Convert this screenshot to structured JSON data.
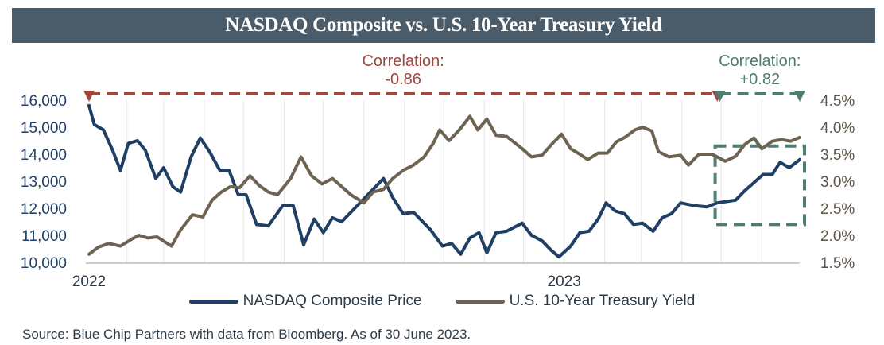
{
  "chart_data": {
    "type": "line",
    "title": "NASDAQ Composite vs. U.S. 10-Year Treasury Yield",
    "source": "Source: Blue Chip Partners with data from Bloomberg. As of 30 June 2023.",
    "x_tick_labels": [
      "2022",
      "2023"
    ],
    "x_range": [
      "2022-01-03",
      "2023-06-30"
    ],
    "y_left": {
      "ylim": [
        10000,
        16000
      ],
      "ticks": [
        "10,000",
        "11,000",
        "12,000",
        "13,000",
        "14,000",
        "15,000",
        "16,000"
      ]
    },
    "y_right": {
      "ylim": [
        1.5,
        4.5
      ],
      "ticks": [
        "1.5%",
        "2.0%",
        "2.5%",
        "3.0%",
        "3.5%",
        "4.0%",
        "4.5%"
      ]
    },
    "legend_position": "bottom",
    "series": [
      {
        "name": "NASDAQ Composite Price",
        "axis": "left",
        "color": "#1f3f66",
        "points": [
          [
            "2022-01-03",
            15800
          ],
          [
            "2022-01-07",
            15100
          ],
          [
            "2022-01-14",
            14900
          ],
          [
            "2022-01-21",
            14150
          ],
          [
            "2022-01-27",
            13400
          ],
          [
            "2022-02-02",
            14400
          ],
          [
            "2022-02-09",
            14500
          ],
          [
            "2022-02-15",
            14150
          ],
          [
            "2022-02-23",
            13100
          ],
          [
            "2022-03-01",
            13500
          ],
          [
            "2022-03-08",
            12800
          ],
          [
            "2022-03-14",
            12600
          ],
          [
            "2022-03-22",
            13900
          ],
          [
            "2022-03-29",
            14600
          ],
          [
            "2022-04-05",
            14100
          ],
          [
            "2022-04-13",
            13400
          ],
          [
            "2022-04-20",
            13400
          ],
          [
            "2022-04-27",
            12500
          ],
          [
            "2022-05-03",
            12500
          ],
          [
            "2022-05-11",
            11400
          ],
          [
            "2022-05-20",
            11350
          ],
          [
            "2022-05-31",
            12100
          ],
          [
            "2022-06-08",
            12100
          ],
          [
            "2022-06-16",
            10650
          ],
          [
            "2022-06-24",
            11600
          ],
          [
            "2022-07-01",
            11100
          ],
          [
            "2022-07-08",
            11650
          ],
          [
            "2022-07-15",
            11500
          ],
          [
            "2022-07-22",
            11850
          ],
          [
            "2022-08-01",
            12350
          ],
          [
            "2022-08-08",
            12700
          ],
          [
            "2022-08-16",
            13100
          ],
          [
            "2022-08-23",
            12400
          ],
          [
            "2022-08-31",
            11800
          ],
          [
            "2022-09-08",
            11850
          ],
          [
            "2022-09-13",
            11600
          ],
          [
            "2022-09-21",
            11200
          ],
          [
            "2022-09-30",
            10600
          ],
          [
            "2022-10-07",
            10700
          ],
          [
            "2022-10-14",
            10300
          ],
          [
            "2022-10-21",
            10900
          ],
          [
            "2022-10-28",
            11100
          ],
          [
            "2022-11-03",
            10350
          ],
          [
            "2022-11-10",
            11100
          ],
          [
            "2022-11-18",
            11150
          ],
          [
            "2022-11-30",
            11450
          ],
          [
            "2022-12-07",
            11000
          ],
          [
            "2022-12-15",
            10800
          ],
          [
            "2022-12-22",
            10450
          ],
          [
            "2022-12-28",
            10200
          ],
          [
            "2023-01-06",
            10600
          ],
          [
            "2023-01-13",
            11100
          ],
          [
            "2023-01-20",
            11150
          ],
          [
            "2023-01-27",
            11600
          ],
          [
            "2023-02-02",
            12200
          ],
          [
            "2023-02-09",
            11900
          ],
          [
            "2023-02-16",
            11800
          ],
          [
            "2023-02-23",
            11400
          ],
          [
            "2023-03-02",
            11450
          ],
          [
            "2023-03-10",
            11150
          ],
          [
            "2023-03-17",
            11650
          ],
          [
            "2023-03-24",
            11800
          ],
          [
            "2023-03-31",
            12200
          ],
          [
            "2023-04-10",
            12100
          ],
          [
            "2023-04-20",
            12050
          ],
          [
            "2023-04-28",
            12200
          ],
          [
            "2023-05-05",
            12250
          ],
          [
            "2023-05-12",
            12300
          ],
          [
            "2023-05-19",
            12650
          ],
          [
            "2023-05-26",
            12950
          ],
          [
            "2023-06-02",
            13250
          ],
          [
            "2023-06-09",
            13250
          ],
          [
            "2023-06-15",
            13700
          ],
          [
            "2023-06-22",
            13500
          ],
          [
            "2023-06-30",
            13800
          ]
        ]
      },
      {
        "name": "U.S. 10-Year Treasury Yield",
        "axis": "right",
        "color": "#6e6353",
        "points": [
          [
            "2022-01-03",
            1.65
          ],
          [
            "2022-01-10",
            1.78
          ],
          [
            "2022-01-18",
            1.85
          ],
          [
            "2022-01-27",
            1.8
          ],
          [
            "2022-02-04",
            1.92
          ],
          [
            "2022-02-10",
            2.0
          ],
          [
            "2022-02-17",
            1.95
          ],
          [
            "2022-02-24",
            1.97
          ],
          [
            "2022-03-07",
            1.8
          ],
          [
            "2022-03-14",
            2.1
          ],
          [
            "2022-03-23",
            2.38
          ],
          [
            "2022-03-31",
            2.34
          ],
          [
            "2022-04-07",
            2.65
          ],
          [
            "2022-04-14",
            2.8
          ],
          [
            "2022-04-21",
            2.9
          ],
          [
            "2022-04-28",
            2.88
          ],
          [
            "2022-05-06",
            3.1
          ],
          [
            "2022-05-13",
            2.92
          ],
          [
            "2022-05-20",
            2.8
          ],
          [
            "2022-05-27",
            2.75
          ],
          [
            "2022-06-06",
            3.05
          ],
          [
            "2022-06-14",
            3.45
          ],
          [
            "2022-06-22",
            3.1
          ],
          [
            "2022-06-30",
            2.95
          ],
          [
            "2022-07-08",
            3.05
          ],
          [
            "2022-07-15",
            2.9
          ],
          [
            "2022-07-22",
            2.75
          ],
          [
            "2022-08-01",
            2.6
          ],
          [
            "2022-08-08",
            2.8
          ],
          [
            "2022-08-16",
            2.85
          ],
          [
            "2022-08-23",
            3.05
          ],
          [
            "2022-08-31",
            3.2
          ],
          [
            "2022-09-08",
            3.3
          ],
          [
            "2022-09-16",
            3.45
          ],
          [
            "2022-09-23",
            3.7
          ],
          [
            "2022-09-28",
            3.95
          ],
          [
            "2022-10-05",
            3.75
          ],
          [
            "2022-10-13",
            3.95
          ],
          [
            "2022-10-21",
            4.2
          ],
          [
            "2022-10-27",
            3.95
          ],
          [
            "2022-11-03",
            4.15
          ],
          [
            "2022-11-10",
            3.85
          ],
          [
            "2022-11-18",
            3.83
          ],
          [
            "2022-11-30",
            3.6
          ],
          [
            "2022-12-07",
            3.45
          ],
          [
            "2022-12-15",
            3.48
          ],
          [
            "2022-12-22",
            3.67
          ],
          [
            "2022-12-30",
            3.87
          ],
          [
            "2023-01-06",
            3.6
          ],
          [
            "2023-01-13",
            3.5
          ],
          [
            "2023-01-19",
            3.4
          ],
          [
            "2023-01-27",
            3.52
          ],
          [
            "2023-02-03",
            3.52
          ],
          [
            "2023-02-10",
            3.73
          ],
          [
            "2023-02-17",
            3.82
          ],
          [
            "2023-02-24",
            3.95
          ],
          [
            "2023-03-02",
            4.0
          ],
          [
            "2023-03-09",
            3.93
          ],
          [
            "2023-03-14",
            3.55
          ],
          [
            "2023-03-22",
            3.45
          ],
          [
            "2023-03-31",
            3.48
          ],
          [
            "2023-04-06",
            3.3
          ],
          [
            "2023-04-14",
            3.5
          ],
          [
            "2023-04-24",
            3.5
          ],
          [
            "2023-05-04",
            3.37
          ],
          [
            "2023-05-12",
            3.46
          ],
          [
            "2023-05-19",
            3.68
          ],
          [
            "2023-05-26",
            3.8
          ],
          [
            "2023-06-01",
            3.6
          ],
          [
            "2023-06-09",
            3.74
          ],
          [
            "2023-06-16",
            3.77
          ],
          [
            "2023-06-23",
            3.74
          ],
          [
            "2023-06-30",
            3.81
          ]
        ]
      }
    ],
    "annotations": [
      {
        "label_line1": "Correlation:",
        "label_line2": "-0.86",
        "color": "#a0483d",
        "from": "2022-01-03",
        "to": "2023-04-28",
        "level": 4.5
      },
      {
        "label_line1": "Correlation:",
        "label_line2": "+0.82",
        "color": "#4f7d6f",
        "from": "2023-04-30",
        "to": "2023-06-30",
        "level": 4.5
      }
    ],
    "highlight_box": {
      "from": "2023-04-30",
      "to": "2023-06-30",
      "color": "#4f7d6f",
      "y_left_range": [
        11400,
        14300
      ]
    }
  }
}
